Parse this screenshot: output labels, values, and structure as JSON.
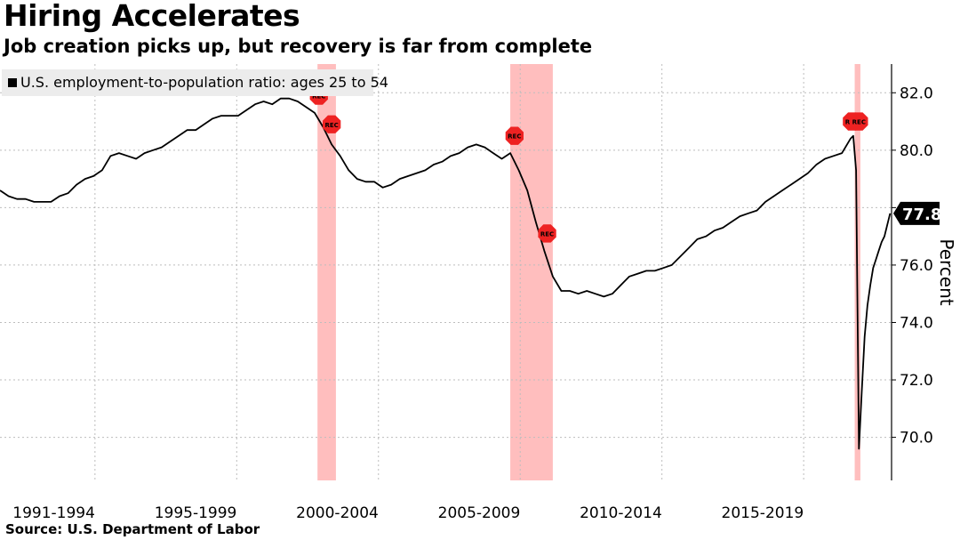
{
  "title": "Hiring Accelerates",
  "subtitle": "Job creation picks up, but recovery is far from complete",
  "source": "Source: U.S. Department of Labor",
  "chart_data": {
    "type": "line",
    "legend": "U.S. employment-to-population ratio: ages 25 to 54",
    "legend_position": "top-left",
    "ylabel": "Percent",
    "ylim": [
      68.5,
      83.0
    ],
    "yticks": [
      70.0,
      72.0,
      74.0,
      76.0,
      78.0,
      80.0,
      82.0
    ],
    "ytick_labels": [
      "70.0",
      "72.0",
      "74.0",
      "76.0",
      "78.0",
      "80.0",
      "82.0"
    ],
    "xlim": [
      1990.0,
      2021.45
    ],
    "x_tick_labels": [
      {
        "label": "1991-1994",
        "x": 1991.9
      },
      {
        "label": "1995-1999",
        "x": 1996.9
      },
      {
        "label": "2000-2004",
        "x": 2001.9
      },
      {
        "label": "2005-2009",
        "x": 2006.9
      },
      {
        "label": "2010-2014",
        "x": 2011.9
      },
      {
        "label": "2015-2019",
        "x": 2016.9
      }
    ],
    "x_gridlines": [
      1993.35,
      1998.35,
      2003.35,
      2008.35,
      2013.35,
      2018.35
    ],
    "last_value": "77.8",
    "last_value_color": "#000000",
    "line_color": "#000000",
    "recession_color": "#ffb3b3",
    "recession_marker_color": "#ee2222",
    "recession_label": "REC",
    "recessions": [
      {
        "start": 2001.2,
        "end": 2001.85
      },
      {
        "start": 2008.0,
        "end": 2009.5
      },
      {
        "start": 2020.15,
        "end": 2020.35
      }
    ],
    "recession_markers": [
      {
        "x": 2001.25,
        "y": 81.9
      },
      {
        "x": 2001.7,
        "y": 80.9
      },
      {
        "x": 2008.15,
        "y": 80.5
      },
      {
        "x": 2009.3,
        "y": 77.1
      },
      {
        "x": 2020.05,
        "y": 81.0
      },
      {
        "x": 2020.3,
        "y": 81.0
      }
    ],
    "series": [
      {
        "name": "U.S. employment-to-population ratio: ages 25 to 54",
        "x": [
          1990.0,
          1990.3,
          1990.6,
          1990.9,
          1991.2,
          1991.5,
          1991.8,
          1992.1,
          1992.4,
          1992.7,
          1993.0,
          1993.3,
          1993.6,
          1993.9,
          1994.2,
          1994.5,
          1994.8,
          1995.1,
          1995.4,
          1995.7,
          1996.0,
          1996.3,
          1996.6,
          1996.9,
          1997.2,
          1997.5,
          1997.8,
          1998.1,
          1998.4,
          1998.7,
          1999.0,
          1999.3,
          1999.6,
          1999.9,
          2000.2,
          2000.5,
          2000.8,
          2001.1,
          2001.4,
          2001.7,
          2002.0,
          2002.3,
          2002.6,
          2002.9,
          2003.2,
          2003.5,
          2003.8,
          2004.1,
          2004.4,
          2004.7,
          2005.0,
          2005.3,
          2005.6,
          2005.9,
          2006.2,
          2006.5,
          2006.8,
          2007.1,
          2007.4,
          2007.7,
          2008.0,
          2008.3,
          2008.6,
          2008.9,
          2009.2,
          2009.5,
          2009.8,
          2010.1,
          2010.4,
          2010.7,
          2011.0,
          2011.3,
          2011.6,
          2011.9,
          2012.2,
          2012.5,
          2012.8,
          2013.1,
          2013.4,
          2013.7,
          2014.0,
          2014.3,
          2014.6,
          2014.9,
          2015.2,
          2015.5,
          2015.8,
          2016.1,
          2016.4,
          2016.7,
          2017.0,
          2017.3,
          2017.6,
          2017.9,
          2018.2,
          2018.5,
          2018.8,
          2019.1,
          2019.4,
          2019.7,
          2020.0,
          2020.1,
          2020.2,
          2020.3,
          2020.4,
          2020.5,
          2020.6,
          2020.7,
          2020.8,
          2020.9,
          2021.0,
          2021.1,
          2021.2,
          2021.3,
          2021.4
        ],
        "values": [
          78.6,
          78.4,
          78.3,
          78.3,
          78.2,
          78.2,
          78.2,
          78.4,
          78.5,
          78.8,
          79.0,
          79.1,
          79.3,
          79.8,
          79.9,
          79.8,
          79.7,
          79.9,
          80.0,
          80.1,
          80.3,
          80.5,
          80.7,
          80.7,
          80.9,
          81.1,
          81.2,
          81.2,
          81.2,
          81.4,
          81.6,
          81.7,
          81.6,
          81.8,
          81.8,
          81.7,
          81.5,
          81.3,
          80.8,
          80.2,
          79.8,
          79.3,
          79.0,
          78.9,
          78.9,
          78.7,
          78.8,
          79.0,
          79.1,
          79.2,
          79.3,
          79.5,
          79.6,
          79.8,
          79.9,
          80.1,
          80.2,
          80.1,
          79.9,
          79.7,
          79.9,
          79.3,
          78.6,
          77.5,
          76.5,
          75.6,
          75.1,
          75.1,
          75.0,
          75.1,
          75.0,
          74.9,
          75.0,
          75.3,
          75.6,
          75.7,
          75.8,
          75.8,
          75.9,
          76.0,
          76.3,
          76.6,
          76.9,
          77.0,
          77.2,
          77.3,
          77.5,
          77.7,
          77.8,
          77.9,
          78.2,
          78.4,
          78.6,
          78.8,
          79.0,
          79.2,
          79.5,
          79.7,
          79.8,
          79.9,
          80.4,
          80.5,
          79.3,
          69.6,
          71.6,
          73.5,
          74.6,
          75.3,
          75.9,
          76.2,
          76.5,
          76.8,
          77.0,
          77.4,
          77.8
        ]
      }
    ]
  }
}
